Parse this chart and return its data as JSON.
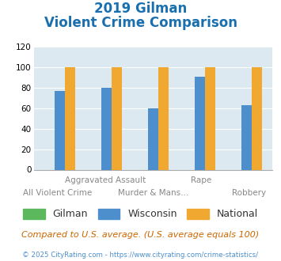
{
  "title_line1": "2019 Gilman",
  "title_line2": "Violent Crime Comparison",
  "categories": [
    "All Violent Crime",
    "Aggravated Assault",
    "Murder & Mans...",
    "Rape",
    "Robbery"
  ],
  "top_labels": [
    "",
    "Aggravated Assault",
    "",
    "Rape",
    ""
  ],
  "bot_labels": [
    "All Violent Crime",
    "",
    "Murder & Mans...",
    "",
    "Robbery"
  ],
  "gilman_values": [
    0,
    0,
    0,
    0,
    0
  ],
  "wisconsin_values": [
    77,
    80,
    60,
    91,
    63
  ],
  "national_values": [
    100,
    100,
    100,
    100,
    100
  ],
  "gilman_color": "#5cb85c",
  "wisconsin_color": "#4d8fcc",
  "national_color": "#f0a830",
  "bg_color": "#dce9f0",
  "ylim": [
    0,
    120
  ],
  "yticks": [
    0,
    20,
    40,
    60,
    80,
    100,
    120
  ],
  "title_fontsize": 12,
  "footer_text": "Compared to U.S. average. (U.S. average equals 100)",
  "copyright_text": "© 2025 CityRating.com - https://www.cityrating.com/crime-statistics/",
  "legend_labels": [
    "Gilman",
    "Wisconsin",
    "National"
  ]
}
